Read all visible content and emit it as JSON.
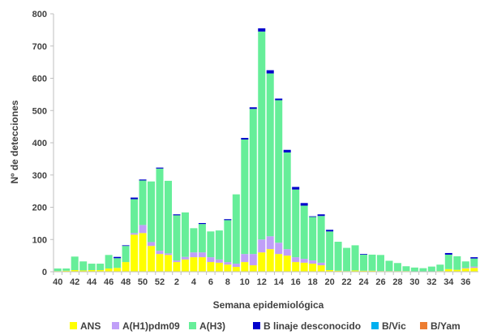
{
  "chart_data": {
    "type": "bar",
    "stacked": true,
    "title": "",
    "xlabel": "Semana epidemiológica",
    "ylabel": "Nº de detecciones",
    "ylim": [
      0,
      800
    ],
    "yticks": [
      0,
      100,
      200,
      300,
      400,
      500,
      600,
      700,
      800
    ],
    "grid": false,
    "legend_position": "bottom",
    "categories": [
      "40",
      "41",
      "42",
      "43",
      "44",
      "45",
      "46",
      "47",
      "48",
      "49",
      "50",
      "51",
      "52",
      "1",
      "2",
      "3",
      "4",
      "5",
      "6",
      "7",
      "8",
      "9",
      "10",
      "11",
      "12",
      "13",
      "14",
      "15",
      "16",
      "17",
      "18",
      "19",
      "20",
      "21",
      "22",
      "23",
      "24",
      "25",
      "26",
      "27",
      "28",
      "29",
      "30",
      "31",
      "32",
      "33",
      "34",
      "35",
      "36",
      "37"
    ],
    "x_tick_labels": [
      "40",
      "42",
      "44",
      "46",
      "48",
      "50",
      "52",
      "2",
      "4",
      "6",
      "8",
      "10",
      "12",
      "14",
      "16",
      "18",
      "20",
      "22",
      "24",
      "26",
      "28",
      "30",
      "32",
      "34",
      "36"
    ],
    "series": [
      {
        "name": "ANS",
        "color": "#ffff00",
        "values": [
          2,
          3,
          5,
          4,
          5,
          5,
          10,
          12,
          30,
          115,
          120,
          80,
          55,
          52,
          30,
          38,
          45,
          45,
          30,
          28,
          22,
          15,
          30,
          20,
          60,
          70,
          55,
          50,
          30,
          28,
          25,
          20,
          5,
          3,
          2,
          4,
          3,
          3,
          2,
          2,
          2,
          2,
          1,
          1,
          1,
          2,
          8,
          6,
          10,
          12
        ]
      },
      {
        "name": "A(H1)pdm09",
        "color": "#c09ff8",
        "values": [
          0,
          0,
          0,
          0,
          0,
          0,
          0,
          0,
          0,
          5,
          25,
          12,
          10,
          5,
          5,
          8,
          15,
          15,
          15,
          10,
          8,
          10,
          25,
          35,
          40,
          40,
          35,
          20,
          15,
          12,
          10,
          8,
          0,
          0,
          0,
          0,
          0,
          0,
          0,
          0,
          0,
          0,
          0,
          0,
          0,
          0,
          0,
          0,
          2,
          4
        ]
      },
      {
        "name": "A(H3)",
        "color": "#66ee99",
        "values": [
          8,
          7,
          42,
          28,
          20,
          20,
          42,
          30,
          50,
          105,
          138,
          188,
          255,
          225,
          140,
          138,
          75,
          88,
          80,
          90,
          130,
          215,
          355,
          450,
          645,
          505,
          442,
          300,
          210,
          165,
          135,
          145,
          120,
          90,
          72,
          78,
          50,
          50,
          50,
          32,
          25,
          15,
          12,
          10,
          15,
          20,
          45,
          42,
          20,
          25
        ]
      },
      {
        "name": "B linaje desconocido",
        "color": "#0000cc",
        "values": [
          0,
          0,
          0,
          0,
          0,
          0,
          0,
          4,
          2,
          5,
          3,
          0,
          3,
          0,
          3,
          0,
          0,
          3,
          0,
          0,
          3,
          0,
          5,
          5,
          10,
          10,
          5,
          8,
          8,
          8,
          2,
          5,
          5,
          0,
          0,
          0,
          2,
          0,
          0,
          0,
          0,
          0,
          0,
          0,
          0,
          0,
          5,
          0,
          0,
          4
        ]
      },
      {
        "name": "B/Vic",
        "color": "#00b0f0",
        "values": [
          0,
          0,
          0,
          0,
          0,
          0,
          0,
          0,
          0,
          0,
          0,
          0,
          0,
          0,
          0,
          0,
          0,
          0,
          0,
          0,
          0,
          0,
          0,
          0,
          0,
          0,
          0,
          0,
          0,
          0,
          0,
          0,
          0,
          0,
          0,
          0,
          0,
          0,
          0,
          0,
          0,
          0,
          0,
          0,
          0,
          0,
          0,
          0,
          0,
          0
        ]
      },
      {
        "name": "B/Yam",
        "color": "#ed7d31",
        "values": [
          0,
          0,
          0,
          0,
          0,
          0,
          0,
          0,
          0,
          0,
          0,
          0,
          0,
          0,
          0,
          0,
          0,
          0,
          0,
          0,
          0,
          0,
          0,
          0,
          0,
          0,
          0,
          0,
          0,
          0,
          0,
          0,
          0,
          0,
          0,
          0,
          0,
          0,
          0,
          0,
          0,
          0,
          0,
          0,
          0,
          0,
          0,
          0,
          0,
          0
        ]
      }
    ]
  }
}
